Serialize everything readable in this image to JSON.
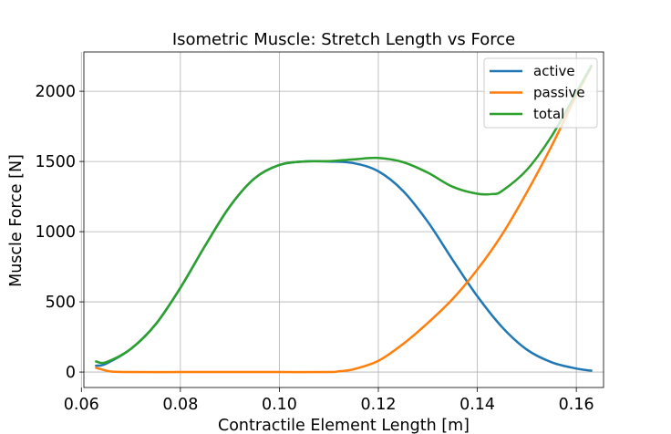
{
  "chart_data": {
    "type": "line",
    "title": "Isometric Muscle: Stretch Length vs Force",
    "xlabel": "Contractile Element Length [m]",
    "ylabel": "Muscle Force [N]",
    "xlim": [
      0.0605,
      0.1655
    ],
    "ylim": [
      -110,
      2280
    ],
    "xticks": [
      0.06,
      0.08,
      0.1,
      0.12,
      0.14,
      0.16
    ],
    "xtick_labels": [
      "0.06",
      "0.08",
      "0.10",
      "0.12",
      "0.14",
      "0.16"
    ],
    "yticks": [
      0,
      500,
      1000,
      1500,
      2000
    ],
    "ytick_labels": [
      "0",
      "500",
      "1000",
      "1500",
      "2000"
    ],
    "grid": true,
    "legend_position": "top-right",
    "series": [
      {
        "name": "active",
        "color": "#1f77b4",
        "x": [
          0.063,
          0.065,
          0.07,
          0.075,
          0.08,
          0.085,
          0.09,
          0.095,
          0.1,
          0.105,
          0.11,
          0.115,
          0.12,
          0.125,
          0.13,
          0.135,
          0.14,
          0.145,
          0.15,
          0.155,
          0.16,
          0.163
        ],
        "y": [
          45,
          60,
          165,
          340,
          600,
          900,
          1180,
          1380,
          1475,
          1500,
          1500,
          1488,
          1430,
          1290,
          1070,
          800,
          540,
          320,
          160,
          70,
          25,
          10
        ]
      },
      {
        "name": "passive",
        "color": "#ff7f0e",
        "x": [
          0.063,
          0.064,
          0.065,
          0.066,
          0.068,
          0.07,
          0.08,
          0.09,
          0.1,
          0.11,
          0.112,
          0.115,
          0.12,
          0.125,
          0.13,
          0.135,
          0.14,
          0.145,
          0.15,
          0.155,
          0.16,
          0.163
        ],
        "y": [
          30,
          20,
          10,
          4,
          1,
          0,
          0,
          0,
          0,
          0,
          5,
          20,
          80,
          200,
          350,
          520,
          730,
          980,
          1280,
          1610,
          1970,
          2170
        ]
      },
      {
        "name": "total",
        "color": "#2ca02c",
        "x": [
          0.063,
          0.065,
          0.07,
          0.075,
          0.08,
          0.085,
          0.09,
          0.095,
          0.1,
          0.105,
          0.11,
          0.115,
          0.12,
          0.125,
          0.13,
          0.135,
          0.14,
          0.143,
          0.145,
          0.15,
          0.155,
          0.16,
          0.163
        ],
        "y": [
          75,
          70,
          165,
          340,
          600,
          900,
          1180,
          1380,
          1475,
          1500,
          1502,
          1515,
          1525,
          1495,
          1420,
          1320,
          1270,
          1268,
          1290,
          1440,
          1680,
          1990,
          2180
        ]
      }
    ]
  }
}
